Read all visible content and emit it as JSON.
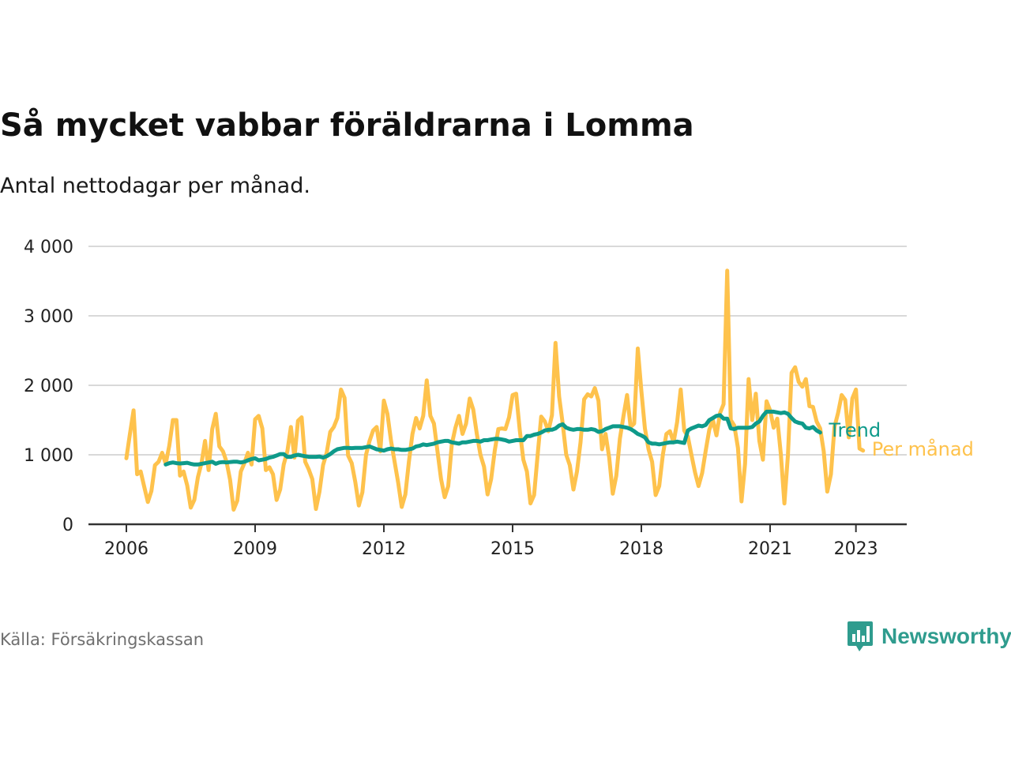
{
  "header": {
    "title": "Så mycket vabbar föräldrarna i Lomma",
    "subtitle": "Antal nettodagar per månad."
  },
  "footer": {
    "source": "Källa: Försäkringskassan",
    "brand_name": "Newsworthy",
    "brand_icon": "bar-chart-speech-bubble-icon",
    "brand_color": "#2f9c8e"
  },
  "chart_data": {
    "type": "line",
    "x_unit": "month",
    "x_start": "2006-01",
    "xlim": [
      "2006-01",
      "2023-12"
    ],
    "ylim": [
      0,
      4000
    ],
    "y_ticks": [
      {
        "value": 0,
        "label": "0"
      },
      {
        "value": 1000,
        "label": "1 000"
      },
      {
        "value": 2000,
        "label": "2 000"
      },
      {
        "value": 3000,
        "label": "3 000"
      },
      {
        "value": 4000,
        "label": "4 000"
      }
    ],
    "x_ticks": [
      {
        "value": "2006-01",
        "label": "2006"
      },
      {
        "value": "2009-01",
        "label": "2009"
      },
      {
        "value": "2012-01",
        "label": "2012"
      },
      {
        "value": "2015-01",
        "label": "2015"
      },
      {
        "value": "2018-01",
        "label": "2018"
      },
      {
        "value": "2021-01",
        "label": "2021"
      },
      {
        "value": "2023-01",
        "label": "2023"
      }
    ],
    "grid": true,
    "colors": {
      "per_month": "#fec24c",
      "trend": "#0e9a8a",
      "grid": "#d9d9d9",
      "axis": "#333333"
    },
    "series": [
      {
        "name": "Per månad",
        "color": "#fec24c",
        "values": [
          950,
          1300,
          1640,
          720,
          760,
          540,
          320,
          480,
          850,
          900,
          1030,
          870,
          1130,
          1500,
          1500,
          700,
          760,
          560,
          240,
          350,
          680,
          880,
          1200,
          780,
          1370,
          1590,
          1120,
          1050,
          900,
          640,
          210,
          340,
          760,
          880,
          1030,
          860,
          1510,
          1560,
          1380,
          780,
          820,
          720,
          350,
          500,
          860,
          1050,
          1400,
          960,
          1490,
          1540,
          900,
          790,
          650,
          220,
          470,
          850,
          1030,
          1330,
          1400,
          1530,
          1940,
          1820,
          990,
          880,
          610,
          270,
          460,
          1000,
          1200,
          1350,
          1400,
          1050,
          1780,
          1590,
          1200,
          900,
          600,
          250,
          430,
          900,
          1300,
          1530,
          1380,
          1560,
          2070,
          1560,
          1450,
          1050,
          650,
          390,
          550,
          1150,
          1390,
          1560,
          1300,
          1450,
          1810,
          1650,
          1300,
          1000,
          830,
          430,
          650,
          1060,
          1370,
          1380,
          1370,
          1540,
          1860,
          1880,
          1350,
          930,
          760,
          300,
          420,
          1000,
          1550,
          1480,
          1340,
          1570,
          2610,
          1840,
          1450,
          1000,
          850,
          500,
          760,
          1180,
          1800,
          1870,
          1840,
          1960,
          1780,
          1080,
          1300,
          960,
          440,
          700,
          1230,
          1560,
          1860,
          1400,
          1450,
          2530,
          1920,
          1380,
          1080,
          900,
          420,
          550,
          1000,
          1300,
          1340,
          1180,
          1470,
          1940,
          1350,
          1260,
          1000,
          750,
          550,
          740,
          1060,
          1360,
          1500,
          1280,
          1600,
          1730,
          3650,
          1500,
          1420,
          1100,
          330,
          870,
          2090,
          1500,
          1880,
          1200,
          930,
          1770,
          1640,
          1390,
          1520,
          1010,
          300,
          1000,
          2180,
          2260,
          2050,
          1980,
          2090,
          1700,
          1690,
          1480,
          1380,
          1050,
          470,
          720,
          1400,
          1600,
          1860,
          1790,
          1250,
          1810,
          1940,
          1090,
          1060
        ]
      },
      {
        "name": "Trend",
        "color": "#0e9a8a",
        "start": "2006-12",
        "values": [
          860,
          880,
          890,
          880,
          875,
          880,
          885,
          870,
          860,
          860,
          870,
          880,
          890,
          900,
          870,
          890,
          895,
          890,
          895,
          900,
          900,
          890,
          900,
          920,
          940,
          950,
          920,
          930,
          940,
          960,
          970,
          990,
          1010,
          1010,
          970,
          970,
          990,
          1000,
          990,
          980,
          970,
          970,
          970,
          975,
          960,
          980,
          1010,
          1050,
          1080,
          1090,
          1100,
          1100,
          1095,
          1100,
          1100,
          1100,
          1110,
          1120,
          1100,
          1080,
          1070,
          1060,
          1080,
          1090,
          1080,
          1080,
          1070,
          1070,
          1080,
          1090,
          1120,
          1130,
          1150,
          1140,
          1150,
          1160,
          1180,
          1190,
          1200,
          1200,
          1180,
          1170,
          1160,
          1180,
          1180,
          1190,
          1200,
          1200,
          1190,
          1210,
          1210,
          1220,
          1230,
          1230,
          1220,
          1210,
          1190,
          1200,
          1210,
          1210,
          1210,
          1270,
          1270,
          1290,
          1300,
          1320,
          1350,
          1360,
          1360,
          1380,
          1420,
          1440,
          1390,
          1370,
          1360,
          1370,
          1370,
          1360,
          1360,
          1370,
          1360,
          1330,
          1340,
          1370,
          1390,
          1410,
          1410,
          1410,
          1400,
          1390,
          1370,
          1340,
          1300,
          1280,
          1250,
          1180,
          1160,
          1160,
          1150,
          1160,
          1170,
          1180,
          1180,
          1190,
          1180,
          1170,
          1350,
          1380,
          1400,
          1420,
          1410,
          1430,
          1500,
          1530,
          1560,
          1570,
          1520,
          1520,
          1380,
          1370,
          1390,
          1390,
          1390,
          1390,
          1400,
          1450,
          1480,
          1560,
          1620,
          1620,
          1620,
          1610,
          1600,
          1610,
          1590,
          1530,
          1480,
          1460,
          1450,
          1390,
          1380,
          1400,
          1350,
          1320
        ]
      }
    ]
  }
}
